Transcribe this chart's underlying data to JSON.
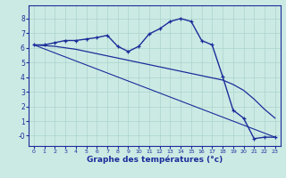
{
  "xlabel": "Graphe des températures (°c)",
  "background_color": "#cceae4",
  "grid_color": "#aad4cc",
  "line_color": "#1a2d9a",
  "x_ticks": [
    0,
    1,
    2,
    3,
    4,
    5,
    6,
    7,
    8,
    9,
    10,
    11,
    12,
    13,
    14,
    15,
    16,
    17,
    18,
    19,
    20,
    21,
    22,
    23
  ],
  "ylim": [
    -0.7,
    8.9
  ],
  "xlim": [
    -0.5,
    23.5
  ],
  "line1_x": [
    0,
    1,
    2,
    3,
    4,
    5,
    6,
    7,
    8,
    9,
    10,
    11,
    12,
    13,
    14,
    15,
    16,
    17,
    18,
    19,
    20,
    21,
    22,
    23
  ],
  "line1_y": [
    6.2,
    6.2,
    6.35,
    6.5,
    6.5,
    6.6,
    6.7,
    6.85,
    6.1,
    5.75,
    6.1,
    6.95,
    7.3,
    7.8,
    8.0,
    7.8,
    6.5,
    6.2,
    4.05,
    1.75,
    1.2,
    -0.2,
    -0.1,
    -0.1
  ],
  "line2_x": [
    0,
    1,
    2,
    3,
    4,
    5,
    6,
    7,
    8,
    9,
    10,
    11,
    12,
    13,
    14,
    15,
    16,
    17,
    18,
    19,
    20,
    21,
    22,
    23
  ],
  "line2_y": [
    6.2,
    6.15,
    6.1,
    6.0,
    5.9,
    5.75,
    5.6,
    5.45,
    5.3,
    5.15,
    5.0,
    4.85,
    4.7,
    4.55,
    4.4,
    4.25,
    4.1,
    3.95,
    3.8,
    3.5,
    3.1,
    2.5,
    1.8,
    1.2
  ],
  "line3_x": [
    0,
    23
  ],
  "line3_y": [
    6.2,
    -0.1
  ],
  "yticks": [
    0,
    1,
    2,
    3,
    4,
    5,
    6,
    7,
    8
  ],
  "ytick_labels": [
    "-0",
    "1",
    "2",
    "3",
    "4",
    "5",
    "6",
    "7",
    "8"
  ]
}
